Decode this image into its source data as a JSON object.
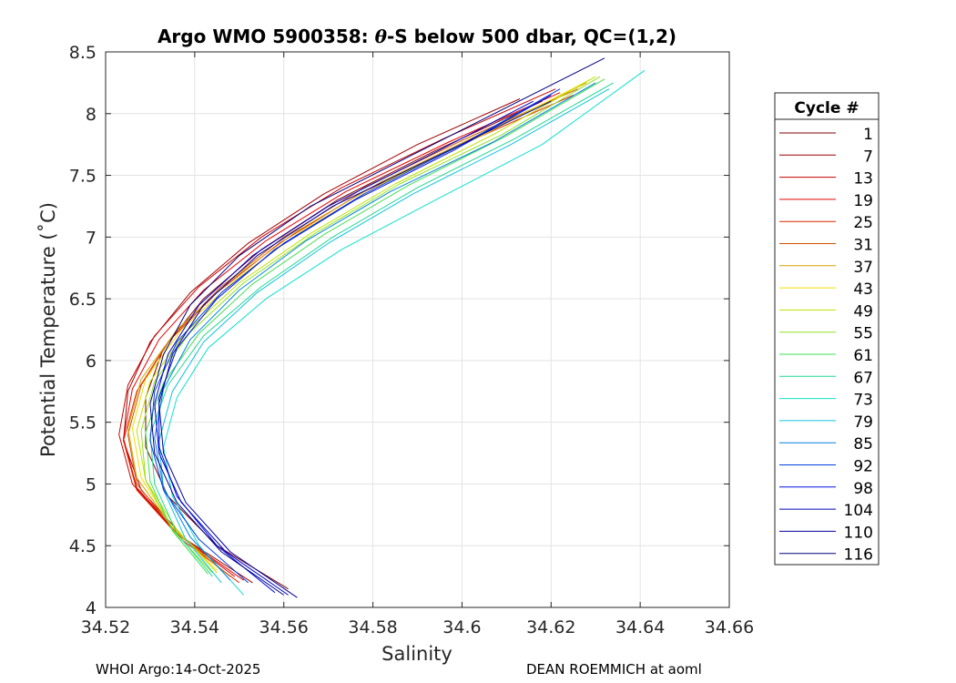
{
  "chart_data": {
    "type": "line",
    "title": "Argo WMO 5900358: θ-S below 500 dbar,  QC=(1,2)",
    "title_prefix": "Argo WMO 5900358: ",
    "title_theta": "θ",
    "title_suffix": "-S below 500 dbar,  QC=(1,2)",
    "xlabel": "Salinity",
    "ylabel": "Potential Temperature (˚C)",
    "xlim": [
      34.52,
      34.66
    ],
    "ylim": [
      4,
      8.5
    ],
    "xticks": [
      34.52,
      34.54,
      34.56,
      34.58,
      34.6,
      34.62,
      34.64,
      34.66
    ],
    "xtick_labels": [
      "34.52",
      "34.54",
      "34.56",
      "34.58",
      "34.6",
      "34.62",
      "34.64",
      "34.66"
    ],
    "yticks": [
      4,
      4.5,
      5,
      5.5,
      6,
      6.5,
      7,
      7.5,
      8,
      8.5
    ],
    "ytick_labels": [
      "4",
      "4.5",
      "5",
      "5.5",
      "6",
      "6.5",
      "7",
      "7.5",
      "8",
      "8.5"
    ],
    "grid": true,
    "legend_title": "Cycle #",
    "legend_position": "outside-right",
    "series": [
      {
        "name": "1",
        "color": "#800000",
        "x": [
          34.561,
          34.545,
          34.534,
          34.529,
          34.529,
          34.533,
          34.542,
          34.555,
          34.572,
          34.594,
          34.618
        ],
        "y": [
          4.15,
          4.5,
          4.9,
          5.3,
          5.7,
          6.1,
          6.5,
          6.9,
          7.3,
          7.7,
          8.1
        ]
      },
      {
        "name": "7",
        "color": "#a00000",
        "x": [
          34.553,
          34.538,
          34.528,
          34.524,
          34.525,
          34.53,
          34.539,
          34.552,
          34.569,
          34.59,
          34.613
        ],
        "y": [
          4.2,
          4.55,
          4.95,
          5.35,
          5.75,
          6.15,
          6.55,
          6.95,
          7.35,
          7.75,
          8.12
        ]
      },
      {
        "name": "13",
        "color": "#c80000",
        "x": [
          34.549,
          34.536,
          34.526,
          34.523,
          34.525,
          34.531,
          34.541,
          34.555,
          34.573,
          34.596,
          34.621
        ],
        "y": [
          4.25,
          4.6,
          5.0,
          5.4,
          5.8,
          6.2,
          6.6,
          7.0,
          7.4,
          7.8,
          8.2
        ]
      },
      {
        "name": "19",
        "color": "#e60000",
        "x": [
          34.551,
          34.537,
          34.527,
          34.524,
          34.526,
          34.532,
          34.542,
          34.556,
          34.574,
          34.597,
          34.622
        ],
        "y": [
          4.22,
          4.57,
          4.97,
          5.37,
          5.77,
          6.17,
          6.57,
          6.97,
          7.37,
          7.77,
          8.17
        ]
      },
      {
        "name": "25",
        "color": "#dd2200",
        "x": [
          34.55,
          34.537,
          34.527,
          34.524,
          34.527,
          34.534,
          34.545,
          34.559,
          34.577,
          34.6,
          34.625
        ],
        "y": [
          4.2,
          4.55,
          4.95,
          5.35,
          5.75,
          6.15,
          6.55,
          6.95,
          7.35,
          7.75,
          8.15
        ]
      },
      {
        "name": "31",
        "color": "#d05000",
        "x": [
          34.548,
          34.536,
          34.527,
          34.525,
          34.528,
          34.535,
          34.546,
          34.56,
          34.578,
          34.601,
          34.626
        ],
        "y": [
          4.25,
          4.6,
          5.0,
          5.4,
          5.8,
          6.2,
          6.6,
          7.0,
          7.4,
          7.8,
          8.2
        ]
      },
      {
        "name": "37",
        "color": "#d8a000",
        "x": [
          34.546,
          34.535,
          34.527,
          34.525,
          34.528,
          34.536,
          34.548,
          34.563,
          34.582,
          34.605,
          34.628
        ],
        "y": [
          4.3,
          4.65,
          5.05,
          5.45,
          5.85,
          6.25,
          6.65,
          7.05,
          7.45,
          7.85,
          8.25
        ]
      },
      {
        "name": "43",
        "color": "#f0e000",
        "x": [
          34.545,
          34.535,
          34.528,
          34.526,
          34.529,
          34.537,
          34.549,
          34.564,
          34.583,
          34.606,
          34.629
        ],
        "y": [
          4.3,
          4.65,
          5.05,
          5.45,
          5.85,
          6.25,
          6.65,
          7.05,
          7.45,
          7.85,
          8.28
        ]
      },
      {
        "name": "49",
        "color": "#c0e000",
        "x": [
          34.545,
          34.536,
          34.529,
          34.527,
          34.53,
          34.538,
          34.55,
          34.566,
          34.585,
          34.607,
          34.63
        ],
        "y": [
          4.28,
          4.63,
          5.03,
          5.43,
          5.83,
          6.23,
          6.63,
          7.03,
          7.43,
          7.83,
          8.3
        ]
      },
      {
        "name": "55",
        "color": "#90e020",
        "x": [
          34.544,
          34.535,
          34.529,
          34.528,
          34.531,
          34.539,
          34.551,
          34.567,
          34.586,
          34.609,
          34.631
        ],
        "y": [
          4.28,
          4.63,
          5.03,
          5.43,
          5.83,
          6.23,
          6.63,
          7.03,
          7.43,
          7.83,
          8.3
        ]
      },
      {
        "name": "61",
        "color": "#40e050",
        "x": [
          34.543,
          34.535,
          34.53,
          34.529,
          34.533,
          34.541,
          34.553,
          34.569,
          34.588,
          34.61,
          34.632
        ],
        "y": [
          4.27,
          4.62,
          5.02,
          5.42,
          5.82,
          6.22,
          6.62,
          7.02,
          7.42,
          7.82,
          8.28
        ]
      },
      {
        "name": "67",
        "color": "#20d890",
        "x": [
          34.544,
          34.536,
          34.531,
          34.53,
          34.534,
          34.542,
          34.555,
          34.571,
          34.59,
          34.612,
          34.634
        ],
        "y": [
          4.25,
          4.6,
          5.0,
          5.4,
          5.8,
          6.2,
          6.6,
          7.0,
          7.4,
          7.8,
          8.25
        ]
      },
      {
        "name": "73",
        "color": "#10e0d0",
        "x": [
          34.551,
          34.541,
          34.535,
          34.533,
          34.536,
          34.543,
          34.556,
          34.573,
          34.594,
          34.618,
          34.641
        ],
        "y": [
          4.1,
          4.5,
          4.9,
          5.3,
          5.7,
          6.1,
          6.5,
          6.9,
          7.3,
          7.75,
          8.35
        ]
      },
      {
        "name": "79",
        "color": "#10c0e0",
        "x": [
          34.546,
          34.538,
          34.533,
          34.532,
          34.535,
          34.542,
          34.554,
          34.57,
          34.589,
          34.611,
          34.633
        ],
        "y": [
          4.2,
          4.55,
          4.95,
          5.35,
          5.75,
          6.15,
          6.55,
          6.95,
          7.35,
          7.75,
          8.2
        ]
      },
      {
        "name": "85",
        "color": "#0080e0",
        "x": [
          34.548,
          34.539,
          34.533,
          34.531,
          34.533,
          34.539,
          34.55,
          34.565,
          34.584,
          34.607,
          34.63
        ],
        "y": [
          4.22,
          4.57,
          4.97,
          5.37,
          5.77,
          6.17,
          6.57,
          6.97,
          7.37,
          7.77,
          8.25
        ]
      },
      {
        "name": "92",
        "color": "#0040e0",
        "x": [
          34.552,
          34.541,
          34.533,
          34.53,
          34.531,
          34.536,
          34.546,
          34.56,
          34.578,
          34.6,
          34.622
        ],
        "y": [
          4.2,
          4.55,
          4.95,
          5.35,
          5.75,
          6.15,
          6.55,
          6.95,
          7.35,
          7.75,
          8.2
        ]
      },
      {
        "name": "98",
        "color": "#0010e0",
        "x": [
          34.558,
          34.545,
          34.536,
          34.532,
          34.532,
          34.536,
          34.545,
          34.558,
          34.576,
          34.598,
          34.62
        ],
        "y": [
          4.12,
          4.5,
          4.9,
          5.3,
          5.7,
          6.1,
          6.5,
          6.9,
          7.3,
          7.7,
          8.15
        ]
      },
      {
        "name": "104",
        "color": "#0000c0",
        "x": [
          34.561,
          34.547,
          34.537,
          34.532,
          34.531,
          34.534,
          34.541,
          34.553,
          34.57,
          34.592,
          34.616
        ],
        "y": [
          4.1,
          4.45,
          4.85,
          5.25,
          5.65,
          6.05,
          6.45,
          6.85,
          7.25,
          7.65,
          8.1
        ]
      },
      {
        "name": "110",
        "color": "#0000a0",
        "x": [
          34.563,
          34.548,
          34.538,
          34.533,
          34.532,
          34.535,
          34.542,
          34.554,
          34.571,
          34.594,
          34.62
        ],
        "y": [
          4.08,
          4.45,
          4.85,
          5.25,
          5.65,
          6.05,
          6.45,
          6.85,
          7.25,
          7.65,
          8.1
        ]
      },
      {
        "name": "116",
        "color": "#000080",
        "x": [
          34.56,
          34.546,
          34.536,
          34.531,
          34.53,
          34.533,
          34.539,
          34.55,
          34.566,
          34.588,
          34.632
        ],
        "y": [
          4.1,
          4.45,
          4.85,
          5.25,
          5.65,
          6.05,
          6.45,
          6.85,
          7.25,
          7.65,
          8.45
        ]
      }
    ]
  },
  "footer": {
    "left": "WHOI Argo:14-Oct-2025",
    "right": "DEAN ROEMMICH at aoml"
  }
}
